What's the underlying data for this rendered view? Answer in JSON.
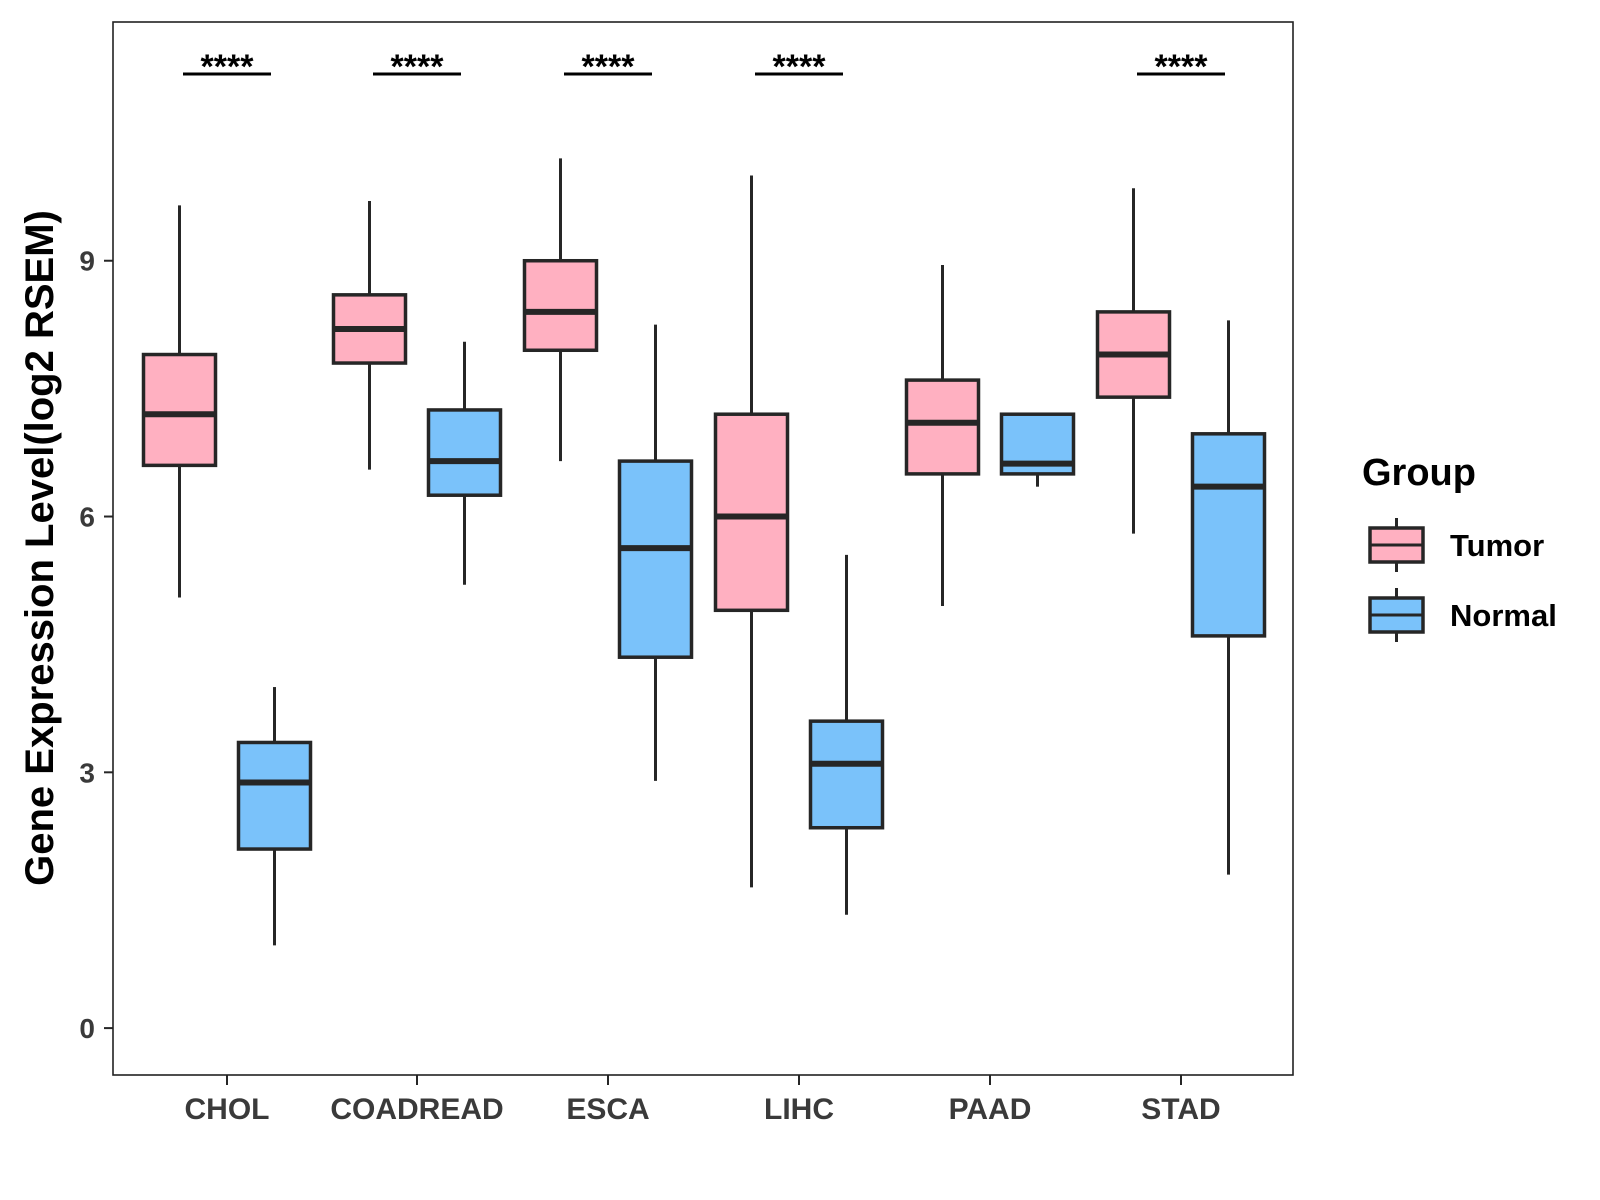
{
  "chart_data": {
    "type": "box",
    "title": "",
    "xlabel": "",
    "ylabel": "Gene Expression Level(log2 RSEM)",
    "ylim": [
      -0.55,
      11.8
    ],
    "yticks": [
      0,
      3,
      6,
      9
    ],
    "categories": [
      "CHOL",
      "COADREAD",
      "ESCA",
      "LIHC",
      "PAAD",
      "STAD"
    ],
    "legend": {
      "title": "Group",
      "position": "right",
      "entries": [
        {
          "name": "Tumor",
          "color": "#ffb0c1"
        },
        {
          "name": "Normal",
          "color": "#7ac2fa"
        }
      ]
    },
    "series": [
      {
        "name": "Tumor",
        "color": "#ffb0c1",
        "boxes": [
          {
            "category": "CHOL",
            "whisker_low": 5.05,
            "q1": 6.6,
            "median": 7.2,
            "q3": 7.9,
            "whisker_high": 9.65
          },
          {
            "category": "COADREAD",
            "whisker_low": 6.55,
            "q1": 7.8,
            "median": 8.2,
            "q3": 8.6,
            "whisker_high": 9.7
          },
          {
            "category": "ESCA",
            "whisker_low": 6.65,
            "q1": 7.95,
            "median": 8.4,
            "q3": 9.0,
            "whisker_high": 10.2
          },
          {
            "category": "LIHC",
            "whisker_low": 1.65,
            "q1": 4.9,
            "median": 6.0,
            "q3": 7.2,
            "whisker_high": 10.0
          },
          {
            "category": "PAAD",
            "whisker_low": 4.95,
            "q1": 6.5,
            "median": 7.1,
            "q3": 7.6,
            "whisker_high": 8.95
          },
          {
            "category": "STAD",
            "whisker_low": 5.8,
            "q1": 7.4,
            "median": 7.9,
            "q3": 8.4,
            "whisker_high": 9.85
          }
        ]
      },
      {
        "name": "Normal",
        "color": "#7ac2fa",
        "boxes": [
          {
            "category": "CHOL",
            "whisker_low": 0.97,
            "q1": 2.1,
            "median": 2.88,
            "q3": 3.35,
            "whisker_high": 4.0
          },
          {
            "category": "COADREAD",
            "whisker_low": 5.2,
            "q1": 6.25,
            "median": 6.65,
            "q3": 7.25,
            "whisker_high": 8.05
          },
          {
            "category": "ESCA",
            "whisker_low": 2.9,
            "q1": 4.35,
            "median": 5.63,
            "q3": 6.65,
            "whisker_high": 8.25
          },
          {
            "category": "LIHC",
            "whisker_low": 1.33,
            "q1": 2.35,
            "median": 3.1,
            "q3": 3.6,
            "whisker_high": 5.55
          },
          {
            "category": "PAAD",
            "whisker_low": 6.35,
            "q1": 6.5,
            "median": 6.62,
            "q3": 7.2,
            "whisker_high": 7.2
          },
          {
            "category": "STAD",
            "whisker_low": 1.8,
            "q1": 4.6,
            "median": 6.35,
            "q3": 6.97,
            "whisker_high": 8.3
          }
        ]
      }
    ],
    "annotations": [
      {
        "category": "CHOL",
        "text": "****"
      },
      {
        "category": "COADREAD",
        "text": "****"
      },
      {
        "category": "ESCA",
        "text": "****"
      },
      {
        "category": "LIHC",
        "text": "****"
      },
      {
        "category": "STAD",
        "text": "****"
      }
    ]
  }
}
